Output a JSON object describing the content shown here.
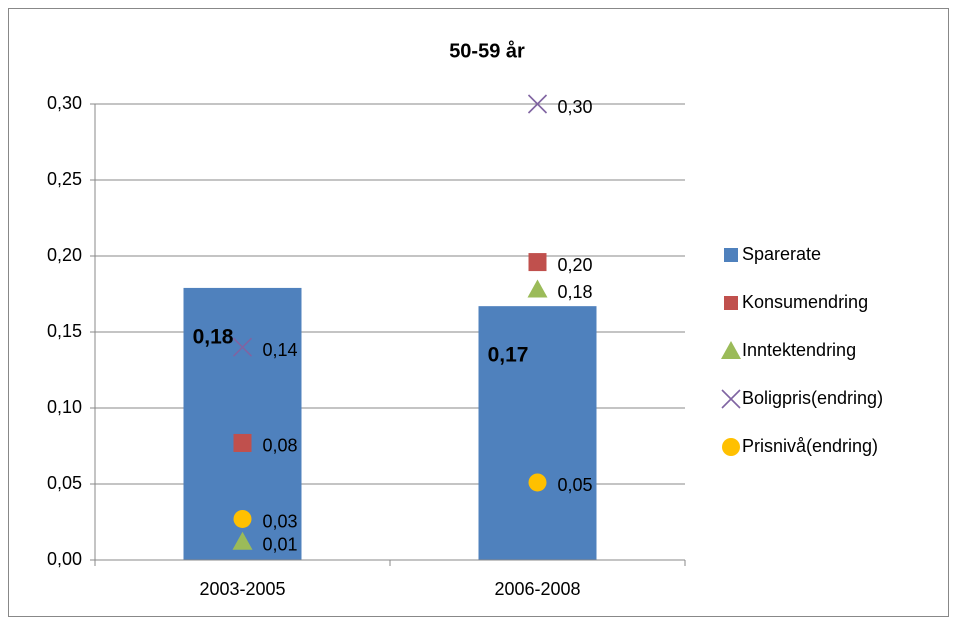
{
  "chart_data": {
    "type": "bar",
    "title": "50-59 år",
    "categories": [
      "2003-2005",
      "2006-2008"
    ],
    "series": [
      {
        "name": "Sparerate",
        "type": "bar",
        "marker": "square",
        "color": "#4f81bd",
        "values": [
          0.179,
          0.167
        ],
        "value_labels": [
          "0,18",
          "0,17"
        ]
      },
      {
        "name": "Konsumendring",
        "type": "scatter",
        "marker": "square",
        "color": "#c0504d",
        "values": [
          0.077,
          0.196
        ],
        "value_labels": [
          "0,08",
          "0,20"
        ]
      },
      {
        "name": "Inntektendring",
        "type": "scatter",
        "marker": "triangle",
        "color": "#9bbb59",
        "values": [
          0.012,
          0.178
        ],
        "value_labels": [
          "0,01",
          "0,18"
        ]
      },
      {
        "name": "Boligpris(endring)",
        "type": "scatter",
        "marker": "x",
        "color": "#8064a2",
        "values": [
          0.14,
          0.3
        ],
        "value_labels": [
          "0,14",
          "0,30"
        ]
      },
      {
        "name": "Prisnivå(endring)",
        "type": "scatter",
        "marker": "circle",
        "color": "#ffc000",
        "values": [
          0.027,
          0.051
        ],
        "value_labels": [
          "0,03",
          "0,05"
        ]
      }
    ],
    "ylim": [
      0,
      0.3
    ],
    "yticks": [
      {
        "value": 0,
        "label": "0,00"
      },
      {
        "value": 0.05,
        "label": "0,05"
      },
      {
        "value": 0.1,
        "label": "0,10"
      },
      {
        "value": 0.15,
        "label": "0,15"
      },
      {
        "value": 0.2,
        "label": "0,20"
      },
      {
        "value": 0.25,
        "label": "0,25"
      },
      {
        "value": 0.3,
        "label": "0,30"
      }
    ],
    "grid": true,
    "legend": "right"
  }
}
